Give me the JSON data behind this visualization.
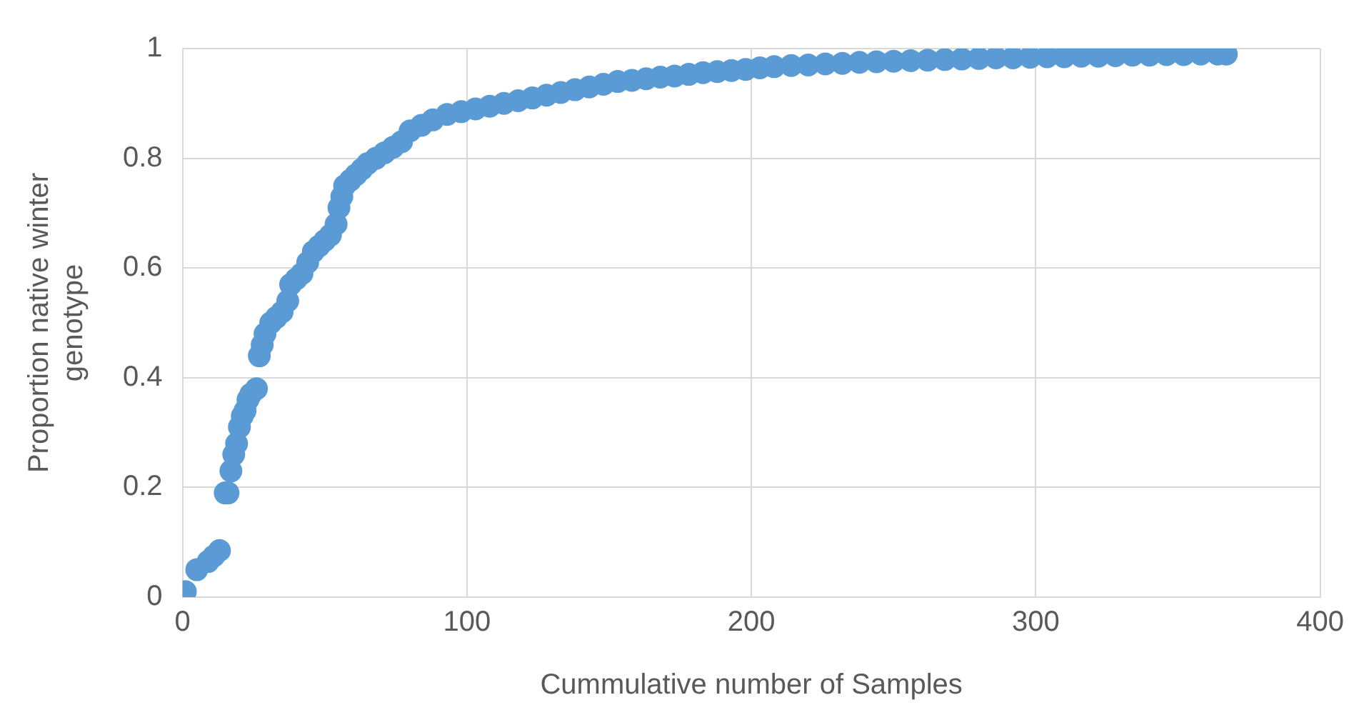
{
  "chart_data": {
    "type": "scatter",
    "xlabel": "Cummulative number of Samples",
    "ylabel": "Proportion native winter genotype",
    "xlim": [
      0,
      400
    ],
    "xticks": [
      0,
      100,
      200,
      300,
      400
    ],
    "ylim": [
      0,
      1
    ],
    "yticks": [
      0,
      0.2,
      0.4,
      0.6,
      0.8,
      1
    ],
    "grid": true,
    "legend": false,
    "marker": "circle",
    "series": [
      {
        "color": "#5b9bd5",
        "x": [
          1,
          5,
          9,
          11,
          13,
          15,
          16,
          17,
          18,
          19,
          20,
          21,
          22,
          23,
          24,
          26,
          27,
          28,
          29,
          31,
          33,
          35,
          37,
          38,
          40,
          42,
          44,
          46,
          48,
          50,
          52,
          54,
          55,
          56,
          57,
          59,
          61,
          63,
          65,
          68,
          71,
          74,
          77,
          80,
          84,
          88,
          93,
          98,
          103,
          108,
          113,
          118,
          123,
          128,
          133,
          138,
          143,
          148,
          153,
          158,
          163,
          168,
          173,
          178,
          183,
          188,
          193,
          198,
          203,
          208,
          214,
          220,
          226,
          232,
          238,
          244,
          250,
          256,
          262,
          268,
          274,
          280,
          286,
          292,
          298,
          304,
          310,
          316,
          322,
          328,
          334,
          340,
          346,
          352,
          358,
          364,
          367
        ],
        "values": [
          0.01,
          0.05,
          0.065,
          0.075,
          0.085,
          0.19,
          0.19,
          0.23,
          0.26,
          0.28,
          0.31,
          0.33,
          0.34,
          0.36,
          0.37,
          0.38,
          0.44,
          0.46,
          0.48,
          0.5,
          0.51,
          0.52,
          0.54,
          0.57,
          0.58,
          0.59,
          0.61,
          0.63,
          0.64,
          0.65,
          0.66,
          0.68,
          0.71,
          0.73,
          0.75,
          0.76,
          0.77,
          0.78,
          0.79,
          0.8,
          0.81,
          0.82,
          0.83,
          0.85,
          0.86,
          0.87,
          0.88,
          0.885,
          0.89,
          0.895,
          0.9,
          0.905,
          0.91,
          0.915,
          0.92,
          0.925,
          0.93,
          0.935,
          0.94,
          0.942,
          0.945,
          0.948,
          0.95,
          0.953,
          0.956,
          0.958,
          0.96,
          0.962,
          0.965,
          0.967,
          0.969,
          0.97,
          0.972,
          0.973,
          0.975,
          0.976,
          0.977,
          0.978,
          0.979,
          0.98,
          0.981,
          0.982,
          0.983,
          0.983,
          0.984,
          0.985,
          0.985,
          0.986,
          0.986,
          0.987,
          0.988,
          0.988,
          0.989,
          0.989,
          0.99,
          0.99,
          0.99
        ]
      }
    ]
  }
}
